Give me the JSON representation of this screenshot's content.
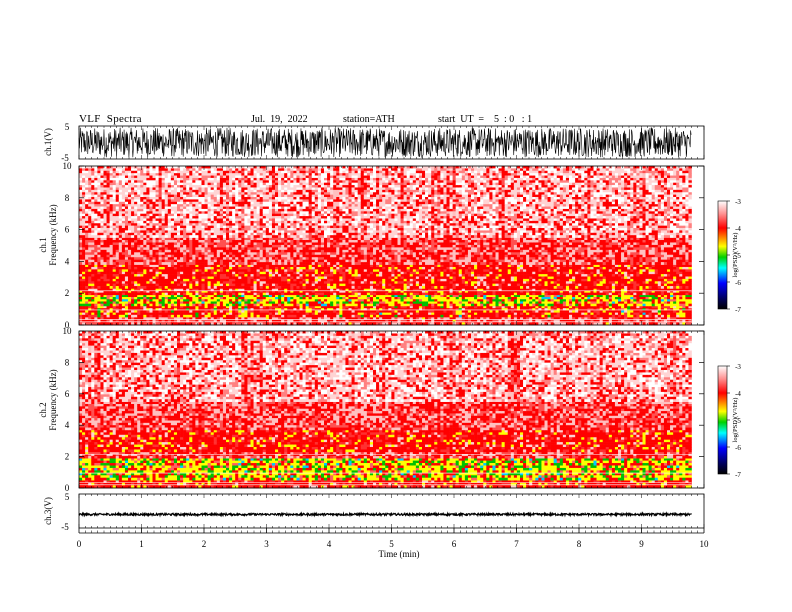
{
  "header": {
    "title": "VLF  Spectra",
    "date": "Jul.  19,  2022",
    "station": "station=ATH",
    "start": "start  UT  =    5  : 0   : 1"
  },
  "colors": {
    "sat": "#ff0000",
    "white": "#ffffff",
    "yellow": "#ffff00",
    "green": "#00c000",
    "cyan": "#00c8ff",
    "blue": "#0000ff",
    "black": "#000000",
    "waveform": "#000000",
    "axis": "#000000"
  },
  "chart_data": [
    {
      "type": "line",
      "panel": "ch1-waveform",
      "ylabel": "ch.1(V)",
      "ytick_labels": [
        "5",
        "-5"
      ],
      "ylim": [
        -5,
        5
      ],
      "xlim": [
        0,
        9.8
      ],
      "description_of_signal": "dense noise",
      "amplitude_range_V": [
        -4.5,
        4.5
      ]
    },
    {
      "type": "heatmap",
      "panel": "ch1-spectrogram",
      "ylabel": "ch.1\nFrequency  (kHz)",
      "ylim": [
        0,
        10
      ],
      "yticks": [
        0,
        2,
        4,
        6,
        8,
        10
      ],
      "xlim": [
        0,
        9.8
      ],
      "bands": [
        {
          "fmin": 0.0,
          "fmax": 0.5,
          "level": -3.8
        },
        {
          "fmin": 0.5,
          "fmax": 1.2,
          "level": -4.3
        },
        {
          "fmin": 1.2,
          "fmax": 1.9,
          "level": -4.6
        },
        {
          "fmin": 1.9,
          "fmax": 2.3,
          "level": -3.9
        },
        {
          "fmin": 2.3,
          "fmax": 3.8,
          "level": -4.0
        },
        {
          "fmin": 3.8,
          "fmax": 5.5,
          "level": -3.4
        },
        {
          "fmin": 5.5,
          "fmax": 10.0,
          "level": -3.15
        }
      ],
      "colorbar": {
        "label": "log(PSD)(V²/Hz)",
        "tick_labels": [
          "-3",
          "-4",
          "-5",
          "-6",
          "-7"
        ],
        "range": [
          -7,
          -3
        ]
      }
    },
    {
      "type": "heatmap",
      "panel": "ch2-spectrogram",
      "ylabel": "ch.2\nFrequency  (kHz)",
      "ylim": [
        0,
        10
      ],
      "yticks": [
        0,
        2,
        4,
        6,
        8,
        10
      ],
      "xlim": [
        0,
        9.8
      ],
      "bands": [
        {
          "fmin": 0.0,
          "fmax": 0.5,
          "level": -3.9
        },
        {
          "fmin": 0.5,
          "fmax": 1.9,
          "level": -4.6
        },
        {
          "fmin": 1.9,
          "fmax": 2.3,
          "level": -3.8
        },
        {
          "fmin": 2.3,
          "fmax": 3.7,
          "level": -4.0
        },
        {
          "fmin": 3.7,
          "fmax": 5.5,
          "level": -3.3
        },
        {
          "fmin": 5.5,
          "fmax": 10.0,
          "level": -3.12
        }
      ],
      "colorbar": {
        "label": "log(PSD)(V²/Hz)",
        "tick_labels": [
          "-3",
          "-4",
          "-5",
          "-6",
          "-7"
        ],
        "range": [
          -7,
          -3
        ]
      }
    },
    {
      "type": "line",
      "panel": "ch3-waveform",
      "ylabel": "ch.3(V)",
      "ytick_labels": [
        "5",
        "-5"
      ],
      "ylim": [
        -5,
        5
      ],
      "xlim": [
        0,
        9.8
      ],
      "description_of_signal": "flat near -1 V",
      "amplitude_range_V": [
        -1.3,
        -0.7
      ]
    }
  ],
  "x_axis": {
    "label": "Time  (min)",
    "range": [
      0,
      10
    ],
    "ticks": [
      "0",
      "1",
      "2",
      "3",
      "4",
      "5",
      "6",
      "7",
      "8",
      "9",
      "10"
    ]
  }
}
